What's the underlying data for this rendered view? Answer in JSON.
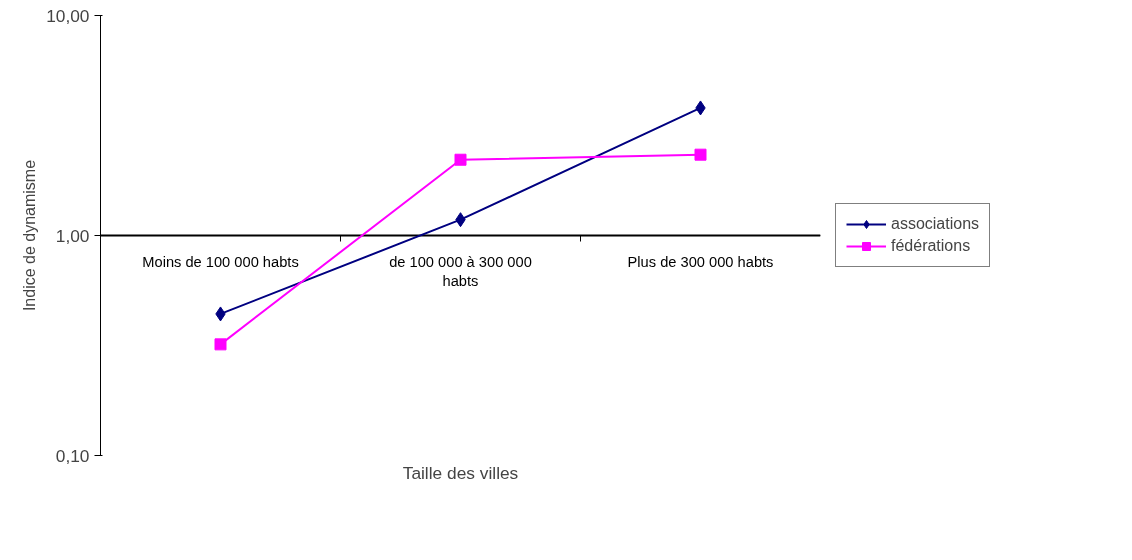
{
  "chart_data": {
    "type": "line",
    "xlabel": "Taille des villes",
    "ylabel": "Indice de dynamisme",
    "categories": [
      "Moins de 100 000 habts",
      "de 100 000 à 300 000 habts",
      "Plus de 300 000 habts"
    ],
    "series": [
      {
        "name": "associations",
        "color": "#000080",
        "marker": "diamond",
        "values": [
          0.44,
          1.18,
          3.8
        ]
      },
      {
        "name": "fédérations",
        "color": "#ff00ff",
        "marker": "square",
        "values": [
          0.32,
          2.21,
          2.33
        ]
      }
    ],
    "log": "y",
    "ylim": [
      0.1,
      10
    ],
    "yticks": [
      {
        "value": 0.1,
        "label": "0,10"
      },
      {
        "value": 1,
        "label": "1,00"
      },
      {
        "value": 10,
        "label": "10,00"
      }
    ],
    "grid": "y",
    "legend": "right"
  }
}
